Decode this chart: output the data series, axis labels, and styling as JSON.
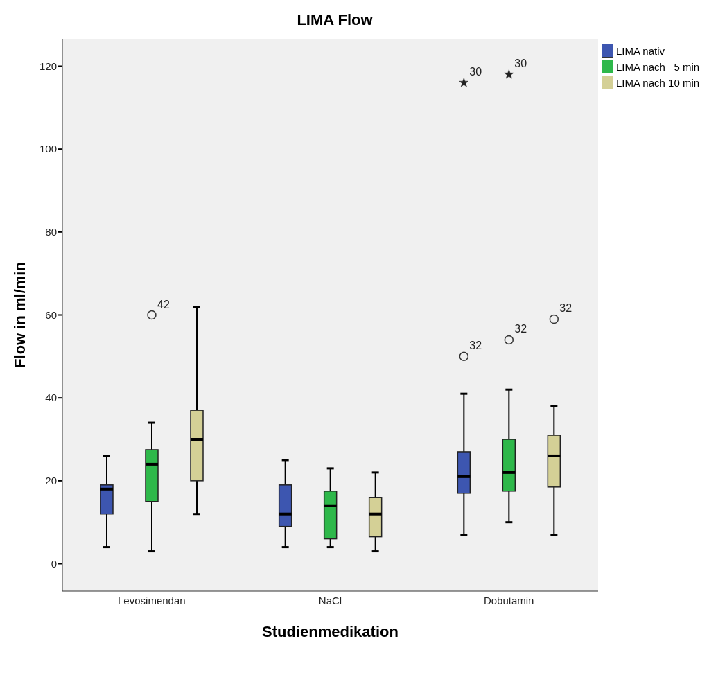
{
  "chart_data": {
    "type": "box",
    "title": "LIMA Flow",
    "xlabel": "Studienmedikation",
    "ylabel": "Flow in ml/min",
    "categories": [
      "Levosimendan",
      "NaCl",
      "Dobutamin"
    ],
    "series": [
      {
        "name": "LIMA nativ",
        "color": "#3d56b0",
        "boxes": [
          {
            "low": 4,
            "q1": 12,
            "median": 18,
            "q3": 19,
            "high": 26
          },
          {
            "low": 4,
            "q1": 9,
            "median": 12,
            "q3": 19,
            "high": 25
          },
          {
            "low": 7,
            "q1": 17,
            "median": 21,
            "q3": 27,
            "high": 41,
            "outliers": [
              50,
              116
            ]
          }
        ]
      },
      {
        "name": "LIMA nach   5 min",
        "color": "#2eb84a",
        "boxes": [
          {
            "low": 3,
            "q1": 15,
            "median": 24,
            "q3": 27.5,
            "high": 34,
            "outliers": [
              60
            ]
          },
          {
            "low": 4,
            "q1": 6,
            "median": 14,
            "q3": 17.5,
            "high": 23
          },
          {
            "low": 10,
            "q1": 17.5,
            "median": 22,
            "q3": 30,
            "high": 42,
            "outliers": [
              54,
              118
            ]
          }
        ]
      },
      {
        "name": "LIMA nach 10 min",
        "color": "#d4d096",
        "boxes": [
          {
            "low": 12,
            "q1": 20,
            "median": 30,
            "q3": 37,
            "high": 62
          },
          {
            "low": 3,
            "q1": 6.5,
            "median": 12,
            "q3": 16,
            "high": 22
          },
          {
            "low": 7,
            "q1": 18.5,
            "median": 26,
            "q3": 31,
            "high": 38,
            "outliers": [
              59
            ]
          }
        ]
      }
    ],
    "annotations": [
      "32",
      "30",
      "42",
      "32",
      "30",
      "32"
    ],
    "ylim": [
      -6.6,
      126.6
    ],
    "yticks": [
      0,
      20,
      40,
      60,
      80,
      100,
      120
    ],
    "grid": false,
    "legend": "top right"
  }
}
